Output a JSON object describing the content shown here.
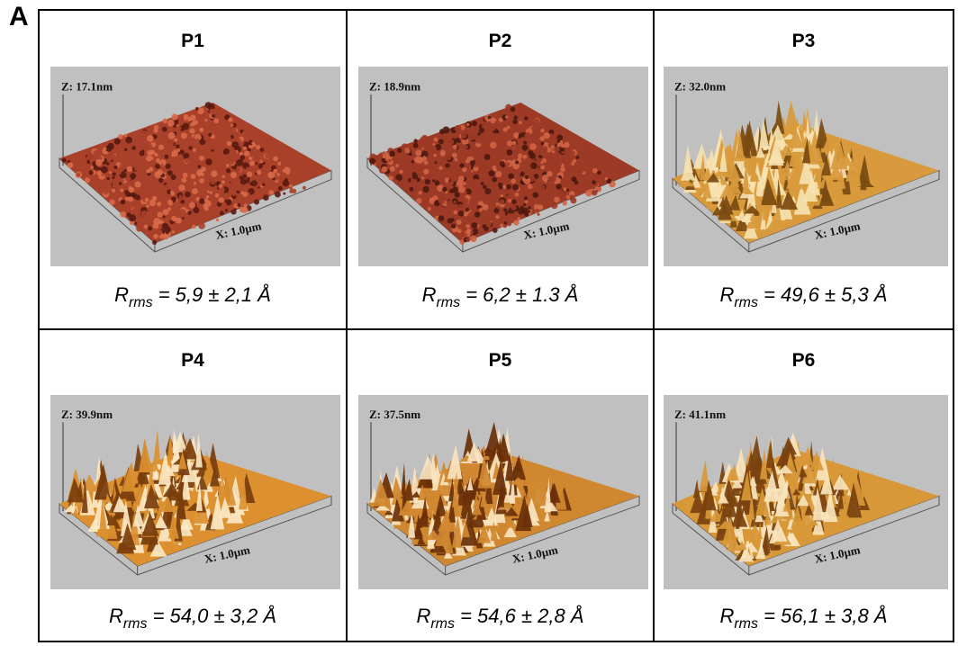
{
  "panel_letter": "A",
  "cells": [
    {
      "title": "P1",
      "z_label": "Z: 17.1nm",
      "x_label": "X: 1.0µm",
      "rms_symbol": "R",
      "rms_sub": "rms",
      "rms_value": " = 5,9 ± 2,1 Å",
      "roughness": "low",
      "colors": {
        "dark": "#5a1a10",
        "mid": "#a8402a",
        "light": "#d86a48"
      }
    },
    {
      "title": "P2",
      "z_label": "Z: 18.9nm",
      "x_label": "X: 1.0µm",
      "rms_symbol": "R",
      "rms_sub": "rms",
      "rms_value": " = 6,2 ± 1.3 Å",
      "roughness": "low",
      "colors": {
        "dark": "#4e1810",
        "mid": "#9c3a26",
        "light": "#d06444"
      }
    },
    {
      "title": "P3",
      "z_label": "Z: 32.0nm",
      "x_label": "X: 1.0µm",
      "rms_symbol": "R",
      "rms_sub": "rms",
      "rms_value": " = 49,6 ± 5,3 Å",
      "roughness": "high",
      "colors": {
        "dark": "#7a4a10",
        "mid": "#d89a3c",
        "light": "#f6e2b0"
      }
    },
    {
      "title": "P4",
      "z_label": "Z: 39.9nm",
      "x_label": "X: 1.0µm",
      "rms_symbol": "R",
      "rms_sub": "rms",
      "rms_value": " = 54,0 ± 3,2 Å",
      "roughness": "high",
      "colors": {
        "dark": "#7a3e0c",
        "mid": "#dc9030",
        "light": "#fbe8c4"
      }
    },
    {
      "title": "P5",
      "z_label": "Z: 37.5nm",
      "x_label": "X: 1.0µm",
      "rms_symbol": "R",
      "rms_sub": "rms",
      "rms_value": " = 54,6 ± 2,8 Å",
      "roughness": "high",
      "colors": {
        "dark": "#6a300a",
        "mid": "#d08830",
        "light": "#fae4c0"
      }
    },
    {
      "title": "P6",
      "z_label": "Z: 41.1nm",
      "x_label": "X: 1.0µm",
      "rms_symbol": "R",
      "rms_sub": "rms",
      "rms_value": " = 56,1 ± 3,8 Å",
      "roughness": "high",
      "colors": {
        "dark": "#7a420e",
        "mid": "#d89838",
        "light": "#f8e4bc"
      }
    }
  ]
}
